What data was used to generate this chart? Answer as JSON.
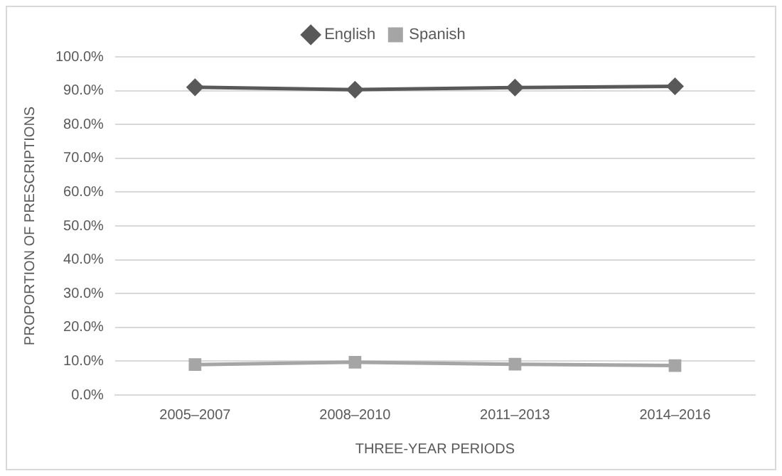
{
  "chart_data": {
    "type": "line",
    "xlabel": "THREE-YEAR PERIODS",
    "ylabel": "PROPORTION OF PRESCRIPTIONS",
    "categories": [
      "2005–2007",
      "2008–2010",
      "2011–2013",
      "2014–2016"
    ],
    "series": [
      {
        "name": "English",
        "color": "#595959",
        "marker": "diamond",
        "values": [
          91.0,
          90.3,
          90.9,
          91.3
        ]
      },
      {
        "name": "Spanish",
        "color": "#a5a5a5",
        "marker": "square",
        "values": [
          9.0,
          9.7,
          9.1,
          8.7
        ]
      }
    ],
    "ylim": [
      0,
      100
    ],
    "yticks": [
      {
        "value": 0,
        "label": "0.0%"
      },
      {
        "value": 10,
        "label": "10.0%"
      },
      {
        "value": 20,
        "label": "20.0%"
      },
      {
        "value": 30,
        "label": "30.0%"
      },
      {
        "value": 40,
        "label": "40.0%"
      },
      {
        "value": 50,
        "label": "50.0%"
      },
      {
        "value": 60,
        "label": "60.0%"
      },
      {
        "value": 70,
        "label": "70.0%"
      },
      {
        "value": 80,
        "label": "80.0%"
      },
      {
        "value": 90,
        "label": "90.0%"
      },
      {
        "value": 100,
        "label": "100.0%"
      }
    ],
    "grid": "y",
    "legend": "top",
    "line_style": "solid"
  }
}
